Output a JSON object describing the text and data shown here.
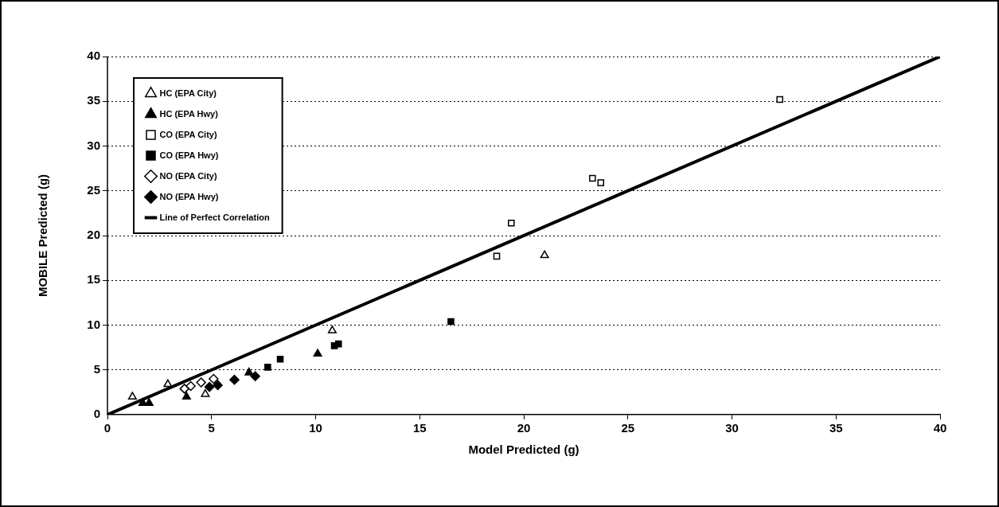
{
  "chart_data": {
    "type": "scatter",
    "xlabel": "Model Predicted (g)",
    "ylabel": "MOBILE Predicted (g)",
    "xlim": [
      0,
      40
    ],
    "ylim": [
      0,
      40
    ],
    "xticks": [
      0,
      5,
      10,
      15,
      20,
      25,
      30,
      35,
      40
    ],
    "yticks": [
      0,
      5,
      10,
      15,
      20,
      25,
      30,
      35,
      40
    ],
    "grid": "y",
    "legend": "top left",
    "series": [
      {
        "name": "HC (EPA City)",
        "color": "#ffffff",
        "marker": "triangle",
        "x": [
          1.2,
          2.9,
          4.7,
          10.8,
          21.0
        ],
        "values": [
          2.0,
          3.4,
          2.3,
          9.4,
          17.8
        ]
      },
      {
        "name": "HC (EPA Hwy)",
        "color": "#000000",
        "marker": "triangle",
        "x": [
          1.7,
          2.0,
          3.8,
          6.8,
          10.1
        ],
        "values": [
          1.3,
          1.3,
          2.0,
          4.7,
          6.8
        ]
      },
      {
        "name": "CO (EPA City)",
        "color": "#ffffff",
        "marker": "square",
        "x": [
          18.7,
          19.4,
          23.3,
          23.7,
          32.3
        ],
        "values": [
          17.7,
          21.4,
          26.4,
          25.9,
          35.2
        ]
      },
      {
        "name": "CO (EPA Hwy)",
        "color": "#000000",
        "marker": "square",
        "x": [
          7.7,
          8.3,
          10.9,
          11.1,
          16.5
        ],
        "values": [
          5.3,
          6.2,
          7.7,
          7.9,
          10.4
        ]
      },
      {
        "name": "NO (EPA City)",
        "color": "#ffffff",
        "marker": "diamond",
        "x": [
          3.7,
          4.0,
          4.5,
          5.1
        ],
        "values": [
          2.9,
          3.2,
          3.6,
          4.0
        ]
      },
      {
        "name": "NO (EPA Hwy)",
        "color": "#000000",
        "marker": "diamond",
        "x": [
          4.9,
          5.3,
          6.1,
          7.1
        ],
        "values": [
          3.1,
          3.3,
          3.9,
          4.3
        ]
      },
      {
        "name": "Line of Perfect Correlation",
        "type": "line",
        "color": "#000000",
        "marker": "none",
        "x": [
          0,
          40
        ],
        "values": [
          0,
          40
        ]
      }
    ]
  }
}
